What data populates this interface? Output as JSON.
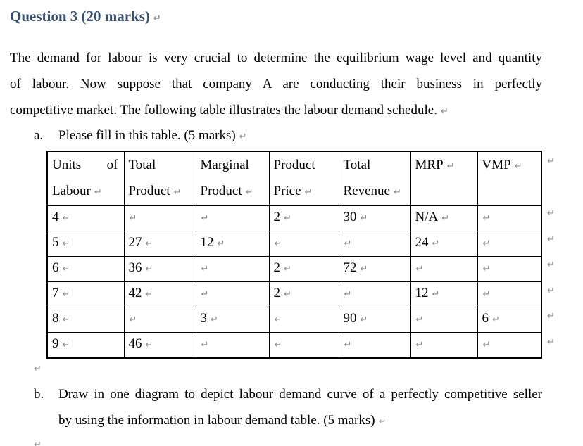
{
  "marks": {
    "return_mark": "↵"
  },
  "colors": {
    "heading": "#3A5170",
    "formatting_mark": "#8C8C8C",
    "table_border": "#000000"
  },
  "heading": {
    "title": "Question 3 (20 marks)"
  },
  "intro": {
    "lines": [
      "The demand for labour is very crucial to determine the equilibrium wage level and quantity",
      "of labour. Now suppose that company A are conducting their business in perfectly",
      "competitive market. The following table illustrates the labour demand schedule."
    ]
  },
  "item_a": {
    "marker": "a.",
    "text": "Please fill in this table. (5 marks)"
  },
  "table": {
    "headers": {
      "col1": {
        "line1a": "Units",
        "line1b": "of",
        "line2": "Labour"
      },
      "col2": {
        "line1": "Total",
        "line2": "Product"
      },
      "col3": {
        "line1": "Marginal",
        "line2": "Product"
      },
      "col4": {
        "line1": "Product",
        "line2": "Price"
      },
      "col5": {
        "line1": "Total",
        "line2": "Revenue"
      },
      "col6": {
        "line1": "MRP"
      },
      "col7": {
        "line1": "VMP"
      }
    },
    "rows": [
      [
        "4",
        "",
        "",
        "2",
        "30",
        "N/A",
        ""
      ],
      [
        "5",
        "27",
        "12",
        "",
        "",
        "24",
        ""
      ],
      [
        "6",
        "36",
        "",
        "2",
        "72",
        "",
        ""
      ],
      [
        "7",
        "42",
        "",
        "2",
        "",
        "12",
        ""
      ],
      [
        "8",
        "",
        "3",
        "",
        "90",
        "",
        "6"
      ],
      [
        "9",
        "46",
        "",
        "",
        "",
        "",
        ""
      ]
    ]
  },
  "item_b": {
    "marker": "b.",
    "lines": [
      "Draw in one diagram to depict labour demand curve of a perfectly competitive seller",
      "by using the information in labour demand table. (5 marks)"
    ]
  }
}
